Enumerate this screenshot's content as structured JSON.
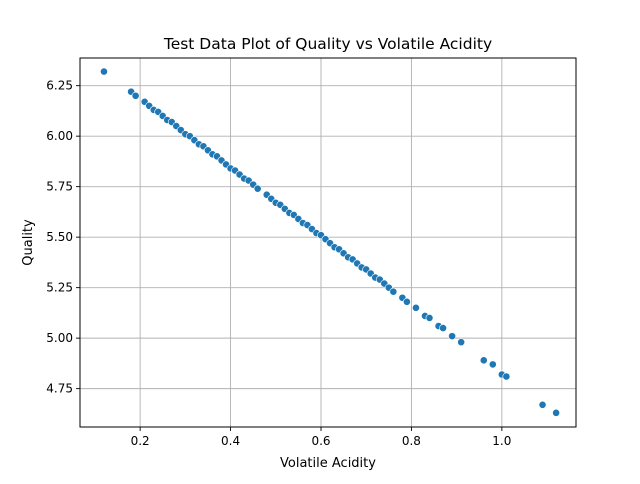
{
  "chart_data": {
    "type": "scatter",
    "title": "Test Data Plot of Quality vs Volatile Acidity",
    "xlabel": "Volatile Acidity",
    "ylabel": "Quality",
    "xlim": [
      0.067,
      1.164
    ],
    "ylim": [
      4.56,
      6.387
    ],
    "xticks": [
      0.2,
      0.4,
      0.6,
      0.8,
      1.0
    ],
    "xtick_labels": [
      "0.2",
      "0.4",
      "0.6",
      "0.8",
      "1.0"
    ],
    "yticks": [
      4.75,
      5.0,
      5.25,
      5.5,
      5.75,
      6.0,
      6.25
    ],
    "ytick_labels": [
      "4.75",
      "5.00",
      "5.25",
      "5.50",
      "5.75",
      "6.00",
      "6.25"
    ],
    "grid": true,
    "legend": "none",
    "point_color": "#1f77b4",
    "points": [
      [
        0.12,
        6.32
      ],
      [
        0.18,
        6.22
      ],
      [
        0.19,
        6.2
      ],
      [
        0.21,
        6.17
      ],
      [
        0.22,
        6.15
      ],
      [
        0.23,
        6.13
      ],
      [
        0.24,
        6.12
      ],
      [
        0.25,
        6.1
      ],
      [
        0.26,
        6.08
      ],
      [
        0.27,
        6.07
      ],
      [
        0.28,
        6.05
      ],
      [
        0.29,
        6.03
      ],
      [
        0.3,
        6.01
      ],
      [
        0.31,
        6.0
      ],
      [
        0.32,
        5.98
      ],
      [
        0.33,
        5.96
      ],
      [
        0.34,
        5.95
      ],
      [
        0.35,
        5.93
      ],
      [
        0.36,
        5.91
      ],
      [
        0.37,
        5.9
      ],
      [
        0.38,
        5.88
      ],
      [
        0.39,
        5.86
      ],
      [
        0.4,
        5.84
      ],
      [
        0.41,
        5.83
      ],
      [
        0.42,
        5.81
      ],
      [
        0.43,
        5.79
      ],
      [
        0.44,
        5.78
      ],
      [
        0.45,
        5.76
      ],
      [
        0.46,
        5.74
      ],
      [
        0.48,
        5.71
      ],
      [
        0.49,
        5.69
      ],
      [
        0.5,
        5.67
      ],
      [
        0.51,
        5.66
      ],
      [
        0.52,
        5.64
      ],
      [
        0.53,
        5.62
      ],
      [
        0.54,
        5.61
      ],
      [
        0.55,
        5.59
      ],
      [
        0.56,
        5.57
      ],
      [
        0.57,
        5.56
      ],
      [
        0.58,
        5.54
      ],
      [
        0.59,
        5.52
      ],
      [
        0.6,
        5.51
      ],
      [
        0.61,
        5.49
      ],
      [
        0.62,
        5.47
      ],
      [
        0.63,
        5.45
      ],
      [
        0.64,
        5.44
      ],
      [
        0.65,
        5.42
      ],
      [
        0.66,
        5.4
      ],
      [
        0.67,
        5.39
      ],
      [
        0.68,
        5.37
      ],
      [
        0.69,
        5.35
      ],
      [
        0.7,
        5.34
      ],
      [
        0.71,
        5.32
      ],
      [
        0.72,
        5.3
      ],
      [
        0.73,
        5.29
      ],
      [
        0.74,
        5.27
      ],
      [
        0.75,
        5.25
      ],
      [
        0.76,
        5.23
      ],
      [
        0.78,
        5.2
      ],
      [
        0.79,
        5.18
      ],
      [
        0.81,
        5.15
      ],
      [
        0.83,
        5.11
      ],
      [
        0.84,
        5.1
      ],
      [
        0.86,
        5.06
      ],
      [
        0.87,
        5.05
      ],
      [
        0.89,
        5.01
      ],
      [
        0.91,
        4.98
      ],
      [
        0.96,
        4.89
      ],
      [
        0.98,
        4.87
      ],
      [
        1.0,
        4.82
      ],
      [
        1.01,
        4.81
      ],
      [
        1.09,
        4.67
      ],
      [
        1.12,
        4.63
      ]
    ]
  }
}
